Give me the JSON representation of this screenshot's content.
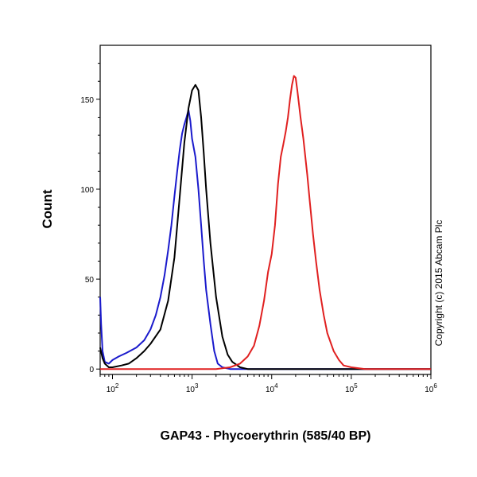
{
  "chart_data": {
    "type": "line",
    "xlabel": "GAP43 - Phycoerythrin (585/40 BP)",
    "ylabel": "Count",
    "x_scale": "log",
    "xlim": [
      70,
      1000000
    ],
    "ylim": [
      -3,
      180
    ],
    "x_ticks": [
      {
        "value": 100,
        "base": "10",
        "exp": "2"
      },
      {
        "value": 1000,
        "base": "10",
        "exp": "3"
      },
      {
        "value": 10000,
        "base": "10",
        "exp": "4"
      },
      {
        "value": 100000,
        "base": "10",
        "exp": "5"
      },
      {
        "value": 1000000,
        "base": "10",
        "exp": "6"
      }
    ],
    "y_ticks": [
      0,
      50,
      100,
      150
    ],
    "grid": false,
    "series": [
      {
        "color": "#1a1acc",
        "points": [
          [
            70,
            40
          ],
          [
            72,
            25
          ],
          [
            75,
            10
          ],
          [
            80,
            4
          ],
          [
            90,
            3
          ],
          [
            100,
            5
          ],
          [
            120,
            7
          ],
          [
            150,
            9
          ],
          [
            200,
            12
          ],
          [
            250,
            16
          ],
          [
            300,
            22
          ],
          [
            350,
            30
          ],
          [
            400,
            40
          ],
          [
            450,
            52
          ],
          [
            500,
            66
          ],
          [
            550,
            80
          ],
          [
            600,
            96
          ],
          [
            650,
            110
          ],
          [
            700,
            122
          ],
          [
            750,
            131
          ],
          [
            800,
            136
          ],
          [
            850,
            140
          ],
          [
            900,
            144
          ],
          [
            950,
            138
          ],
          [
            1000,
            128
          ],
          [
            1100,
            118
          ],
          [
            1200,
            100
          ],
          [
            1300,
            80
          ],
          [
            1400,
            60
          ],
          [
            1500,
            44
          ],
          [
            1700,
            25
          ],
          [
            1900,
            10
          ],
          [
            2100,
            3
          ],
          [
            2400,
            1
          ],
          [
            3000,
            0
          ],
          [
            10000,
            0
          ],
          [
            1000000,
            0
          ]
        ]
      },
      {
        "color": "#000000",
        "points": [
          [
            70,
            12
          ],
          [
            75,
            6
          ],
          [
            80,
            3
          ],
          [
            90,
            1
          ],
          [
            100,
            1
          ],
          [
            130,
            2
          ],
          [
            160,
            3
          ],
          [
            200,
            6
          ],
          [
            250,
            10
          ],
          [
            300,
            14
          ],
          [
            400,
            22
          ],
          [
            500,
            38
          ],
          [
            600,
            62
          ],
          [
            700,
            96
          ],
          [
            800,
            126
          ],
          [
            900,
            145
          ],
          [
            1000,
            155
          ],
          [
            1100,
            158
          ],
          [
            1200,
            155
          ],
          [
            1300,
            140
          ],
          [
            1400,
            120
          ],
          [
            1500,
            100
          ],
          [
            1700,
            70
          ],
          [
            2000,
            40
          ],
          [
            2400,
            18
          ],
          [
            2800,
            8
          ],
          [
            3200,
            4
          ],
          [
            4000,
            1
          ],
          [
            5000,
            0
          ],
          [
            1000000,
            0
          ]
        ]
      },
      {
        "color": "#e02020",
        "points": [
          [
            70,
            0
          ],
          [
            2000,
            0
          ],
          [
            3000,
            1
          ],
          [
            4000,
            3
          ],
          [
            5000,
            7
          ],
          [
            6000,
            13
          ],
          [
            7000,
            24
          ],
          [
            8000,
            38
          ],
          [
            9000,
            54
          ],
          [
            10000,
            64
          ],
          [
            11000,
            80
          ],
          [
            12000,
            103
          ],
          [
            13000,
            118
          ],
          [
            14000,
            125
          ],
          [
            15000,
            132
          ],
          [
            16000,
            140
          ],
          [
            17000,
            150
          ],
          [
            18000,
            158
          ],
          [
            19000,
            163
          ],
          [
            20000,
            162
          ],
          [
            21000,
            155
          ],
          [
            23000,
            140
          ],
          [
            25000,
            128
          ],
          [
            28000,
            108
          ],
          [
            30000,
            94
          ],
          [
            33000,
            75
          ],
          [
            36000,
            60
          ],
          [
            40000,
            44
          ],
          [
            45000,
            30
          ],
          [
            50000,
            20
          ],
          [
            60000,
            10
          ],
          [
            70000,
            5
          ],
          [
            80000,
            2
          ],
          [
            100000,
            1
          ],
          [
            150000,
            0
          ],
          [
            1000000,
            0
          ]
        ]
      }
    ],
    "copyright": "Copyright (c) 2015 Abcam Plc"
  }
}
